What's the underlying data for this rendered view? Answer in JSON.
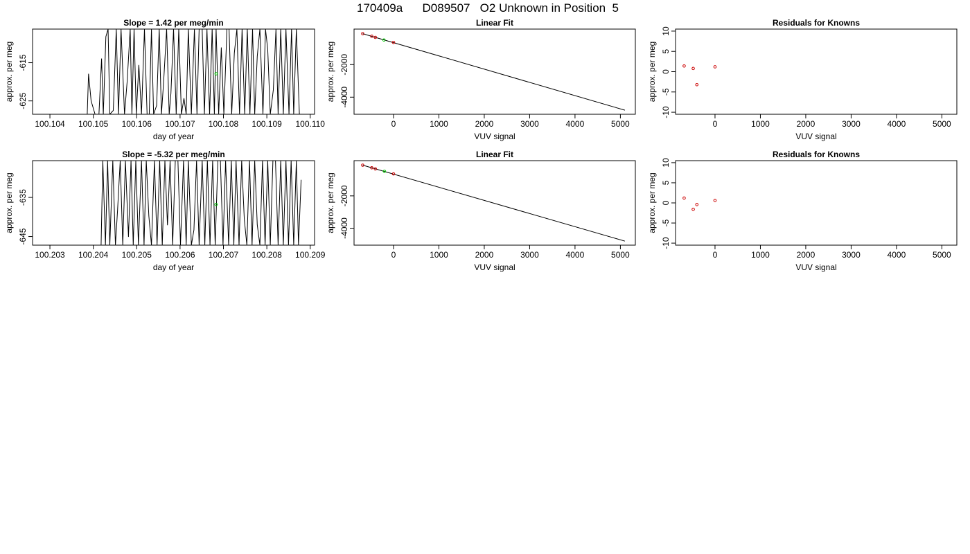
{
  "page_title": "170409a      D089507   O2 Unknown in Position  5",
  "colors": {
    "axis": "#000000",
    "line": "#000000",
    "known_point": "#cc0000",
    "unknown_point": "#00cc00",
    "background": "#ffffff"
  },
  "chart_data": [
    {
      "type": "line",
      "title": "Slope =  1.42  per meg/min",
      "xlabel": "day of year",
      "ylabel": "approx. per meg",
      "xlim": [
        100.1036,
        100.1101
      ],
      "ylim": [
        -628.5,
        -606.2
      ],
      "x_ticks": [
        100.104,
        100.105,
        100.106,
        100.107,
        100.108,
        100.109,
        100.11
      ],
      "x_tick_labels": [
        "100.104",
        "100.105",
        "100.106",
        "100.107",
        "100.108",
        "100.109",
        "100.110"
      ],
      "y_ticks": [
        -615,
        -625
      ],
      "y_tick_labels": [
        "-615",
        "-625"
      ],
      "series": [
        {
          "x": [
            100.10486,
            100.10489,
            100.10495,
            100.10504,
            100.10513,
            100.10519,
            100.10523,
            100.10529,
            100.10534,
            100.10538,
            100.10546,
            100.10553,
            100.10558,
            100.10564,
            100.10572,
            100.10578,
            100.10585,
            100.10589,
            100.10594,
            100.10599,
            100.10605,
            100.10611,
            100.10618,
            100.10624,
            100.10629,
            100.10634,
            100.10639,
            100.10646,
            100.10652,
            100.10657,
            100.10662,
            100.10669,
            100.10675,
            100.10679,
            100.10685,
            100.10691,
            100.10697,
            100.10703,
            100.10709,
            100.10714,
            100.10719,
            100.10726,
            100.10733,
            100.10739,
            100.10744,
            100.10751,
            100.10756,
            100.10762,
            100.10768,
            100.10774,
            100.10779,
            100.10783,
            100.10789,
            100.10795,
            100.10801,
            100.10808,
            100.10813,
            100.10819,
            100.10825,
            100.10831,
            100.10837,
            100.10843,
            100.10849,
            100.10855,
            100.10861,
            100.10867,
            100.10872,
            100.10878,
            100.10884,
            100.10891,
            100.10897,
            100.10902,
            100.10908,
            100.10915,
            100.10921,
            100.10926,
            100.10932,
            100.10938,
            100.10944,
            100.10951,
            100.10957,
            100.10962,
            100.10968,
            100.10975
          ],
          "y": [
            -628.5,
            -617.9,
            -625.0,
            -628.5,
            -628.5,
            -613.9,
            -628.5,
            -608.2,
            -606.2,
            -628.5,
            -627.5,
            -606.2,
            -628.5,
            -606.2,
            -628.5,
            -620.0,
            -606.2,
            -628.5,
            -606.2,
            -628.5,
            -615.6,
            -628.5,
            -606.2,
            -628.5,
            -628.5,
            -606.2,
            -628.5,
            -626.2,
            -606.2,
            -628.5,
            -620.2,
            -606.2,
            -628.5,
            -623.0,
            -606.2,
            -628.5,
            -606.2,
            -628.5,
            -624.3,
            -628.5,
            -606.2,
            -628.5,
            -606.2,
            -628.5,
            -606.2,
            -606.2,
            -628.5,
            -606.2,
            -628.5,
            -606.2,
            -628.5,
            -606.2,
            -628.5,
            -611.0,
            -628.5,
            -606.2,
            -606.2,
            -628.5,
            -612.5,
            -606.2,
            -628.5,
            -606.2,
            -628.5,
            -606.2,
            -628.5,
            -606.2,
            -628.5,
            -613.3,
            -606.2,
            -628.5,
            -606.2,
            -611.5,
            -628.5,
            -622.1,
            -606.2,
            -628.5,
            -606.2,
            -628.5,
            -606.2,
            -628.5,
            -606.2,
            -628.5,
            -606.2,
            -628.5
          ]
        }
      ],
      "unknown_point": {
        "x": 100.10783,
        "y": -617.9
      }
    },
    {
      "type": "scatter",
      "title": "Linear Fit",
      "xlabel": "VUV signal",
      "ylabel": "approx. per meg",
      "xlim": [
        -870,
        5330
      ],
      "ylim": [
        -5050,
        180
      ],
      "x_ticks": [
        0,
        1000,
        2000,
        3000,
        4000,
        5000
      ],
      "x_tick_labels": [
        "0",
        "1000",
        "2000",
        "3000",
        "4000",
        "5000"
      ],
      "y_ticks": [
        -2000,
        -4000
      ],
      "y_tick_labels": [
        "-2000",
        "-4000"
      ],
      "fit_line": {
        "x": [
          -680,
          5100
        ],
        "y": [
          -100,
          -4800
        ]
      },
      "known_points": {
        "x": [
          -680,
          -480,
          -400,
          0
        ],
        "y": [
          -100,
          -260,
          -330,
          -640
        ]
      },
      "unknown_point": {
        "x": -210,
        "y": -490
      }
    },
    {
      "type": "scatter",
      "title": "Residuals for Knowns",
      "xlabel": "VUV signal",
      "ylabel": "approx. per meg",
      "xlim": [
        -870,
        5330
      ],
      "ylim": [
        -10.5,
        10.5
      ],
      "x_ticks": [
        0,
        1000,
        2000,
        3000,
        4000,
        5000
      ],
      "x_tick_labels": [
        "0",
        "1000",
        "2000",
        "3000",
        "4000",
        "5000"
      ],
      "y_ticks": [
        -10,
        -5,
        0,
        5,
        10
      ],
      "y_tick_labels": [
        "-10",
        "-5",
        "0",
        "5",
        "10"
      ],
      "known_points": {
        "x": [
          -680,
          -480,
          -400,
          0
        ],
        "y": [
          1.4,
          0.8,
          -3.2,
          1.2
        ]
      }
    },
    {
      "type": "line",
      "title": "Slope =  -5.32  per meg/min",
      "xlabel": "day of year",
      "ylabel": "approx. per meg",
      "xlim": [
        100.2026,
        100.2091
      ],
      "ylim": [
        -647.2,
        -625.6
      ],
      "x_ticks": [
        100.203,
        100.204,
        100.205,
        100.206,
        100.207,
        100.208,
        100.209
      ],
      "x_tick_labels": [
        "100.203",
        "100.204",
        "100.205",
        "100.206",
        "100.207",
        "100.208",
        "100.209"
      ],
      "y_ticks": [
        -635,
        -645
      ],
      "y_tick_labels": [
        "-635",
        "-645"
      ],
      "series": [
        {
          "x": [
            100.20418,
            100.20422,
            100.20428,
            100.20433,
            100.20438,
            100.20445,
            100.20451,
            100.20456,
            100.20462,
            100.20468,
            100.20474,
            100.20481,
            100.20487,
            100.20492,
            100.20498,
            100.20504,
            100.20511,
            100.20517,
            100.20522,
            100.20528,
            100.20534,
            100.20541,
            100.20547,
            100.20553,
            100.20559,
            100.20565,
            100.20571,
            100.20577,
            100.20583,
            100.20589,
            100.20595,
            100.20601,
            100.20608,
            100.20614,
            100.20619,
            100.20626,
            100.20632,
            100.20638,
            100.20644,
            100.20651,
            100.20657,
            100.20663,
            100.20669,
            100.20675,
            100.20681,
            100.20687,
            100.20693,
            100.20699,
            100.20705,
            100.20712,
            100.20718,
            100.20724,
            100.20729,
            100.20736,
            100.20742,
            100.20748,
            100.20754,
            100.2076,
            100.20766,
            100.20772,
            100.20778,
            100.20784,
            100.2079,
            100.20796,
            100.20802,
            100.20808,
            100.20814,
            100.2082,
            100.20826,
            100.20832,
            100.20838,
            100.20844,
            100.2085,
            100.20856,
            100.20862,
            100.20868,
            100.20873,
            100.20879
          ],
          "y": [
            -647.2,
            -625.6,
            -647.2,
            -625.6,
            -647.2,
            -625.6,
            -647.2,
            -638.2,
            -625.6,
            -647.2,
            -625.6,
            -645.1,
            -625.6,
            -647.2,
            -625.6,
            -647.2,
            -625.6,
            -647.2,
            -625.6,
            -639.7,
            -647.2,
            -625.6,
            -647.2,
            -625.6,
            -647.2,
            -625.6,
            -642.1,
            -625.6,
            -647.2,
            -625.6,
            -625.6,
            -647.2,
            -625.6,
            -647.2,
            -625.6,
            -647.2,
            -643.3,
            -625.6,
            -647.2,
            -625.6,
            -647.2,
            -625.6,
            -647.2,
            -625.6,
            -647.2,
            -625.6,
            -625.6,
            -647.2,
            -625.6,
            -647.2,
            -625.6,
            -647.2,
            -625.6,
            -647.2,
            -625.6,
            -640.6,
            -647.2,
            -625.6,
            -647.2,
            -625.6,
            -642.0,
            -647.2,
            -625.6,
            -647.2,
            -625.6,
            -647.2,
            -625.6,
            -625.6,
            -647.2,
            -625.6,
            -647.2,
            -625.6,
            -647.2,
            -625.6,
            -647.2,
            -625.6,
            -647.2,
            -630.5
          ]
        }
      ],
      "unknown_point": {
        "x": 100.20683,
        "y": -636.8
      }
    },
    {
      "type": "scatter",
      "title": "Linear Fit",
      "xlabel": "VUV signal",
      "ylabel": "approx. per meg",
      "xlim": [
        -870,
        5330
      ],
      "ylim": [
        -5050,
        180
      ],
      "x_ticks": [
        0,
        1000,
        2000,
        3000,
        4000,
        5000
      ],
      "x_tick_labels": [
        "0",
        "1000",
        "2000",
        "3000",
        "4000",
        "5000"
      ],
      "y_ticks": [
        -2000,
        -4000
      ],
      "y_tick_labels": [
        "-2000",
        "-4000"
      ],
      "fit_line": {
        "x": [
          -680,
          5100
        ],
        "y": [
          -100,
          -4800
        ]
      },
      "known_points": {
        "x": [
          -680,
          -480,
          -400,
          0
        ],
        "y": [
          -100,
          -260,
          -330,
          -640
        ]
      },
      "unknown_point": {
        "x": -200,
        "y": -480
      }
    },
    {
      "type": "scatter",
      "title": "Residuals for Knowns",
      "xlabel": "VUV signal",
      "ylabel": "approx. per meg",
      "xlim": [
        -870,
        5330
      ],
      "ylim": [
        -10.5,
        10.5
      ],
      "x_ticks": [
        0,
        1000,
        2000,
        3000,
        4000,
        5000
      ],
      "x_tick_labels": [
        "0",
        "1000",
        "2000",
        "3000",
        "4000",
        "5000"
      ],
      "y_ticks": [
        -10,
        -5,
        0,
        5,
        10
      ],
      "y_tick_labels": [
        "-10",
        "-5",
        "0",
        "5",
        "10"
      ],
      "known_points": {
        "x": [
          -680,
          -480,
          -400,
          0
        ],
        "y": [
          1.2,
          -1.6,
          -0.4,
          0.6
        ]
      }
    }
  ]
}
